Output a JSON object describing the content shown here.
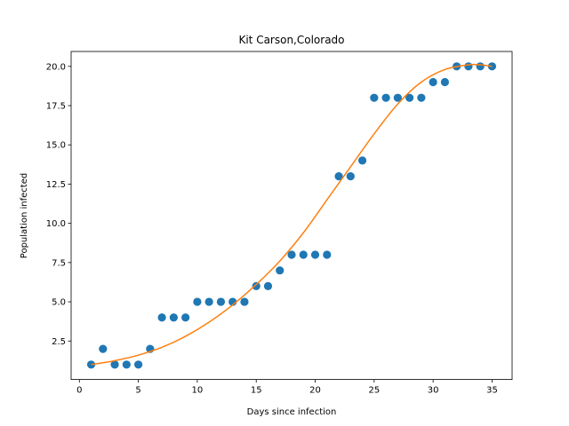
{
  "chart_data": {
    "type": "scatter",
    "title": "Kit Carson,Colorado",
    "xlabel": "Days since infection",
    "ylabel": "Population infected",
    "xlim": [
      -0.7,
      36.7
    ],
    "ylim": [
      0.05,
      20.95
    ],
    "xticks": [
      0,
      5,
      10,
      15,
      20,
      25,
      30,
      35
    ],
    "yticks": [
      2.5,
      5.0,
      7.5,
      10.0,
      12.5,
      15.0,
      17.5,
      20.0
    ],
    "ytick_labels": [
      "2.5",
      "5.0",
      "7.5",
      "10.0",
      "12.5",
      "15.0",
      "17.5",
      "20.0"
    ],
    "grid": false,
    "series": [
      {
        "kind": "scatter",
        "color": "#1f77b4",
        "x": [
          1,
          2,
          3,
          4,
          5,
          6,
          7,
          8,
          9,
          10,
          11,
          12,
          13,
          14,
          15,
          16,
          17,
          18,
          19,
          20,
          21,
          22,
          23,
          24,
          25,
          26,
          27,
          28,
          29,
          30,
          31,
          32,
          33,
          34,
          35
        ],
        "y": [
          1,
          2,
          1,
          1,
          1,
          2,
          4,
          4,
          4,
          5,
          5,
          5,
          5,
          5,
          6,
          6,
          7,
          8,
          8,
          8,
          8,
          13,
          13,
          14,
          18,
          18,
          18,
          18,
          18,
          19,
          19,
          20,
          20,
          20,
          20
        ]
      },
      {
        "kind": "line",
        "color": "#ff7f0e",
        "x": [
          1,
          3,
          5,
          7,
          9,
          11,
          13,
          15,
          17,
          19,
          21,
          23,
          25,
          27,
          29,
          31,
          33,
          34,
          35
        ],
        "y": [
          1.0,
          1.25,
          1.6,
          2.1,
          2.8,
          3.7,
          4.8,
          6.1,
          7.6,
          9.4,
          11.5,
          13.6,
          15.7,
          17.6,
          19.0,
          19.8,
          20.1,
          20.1,
          20.0
        ]
      }
    ]
  }
}
